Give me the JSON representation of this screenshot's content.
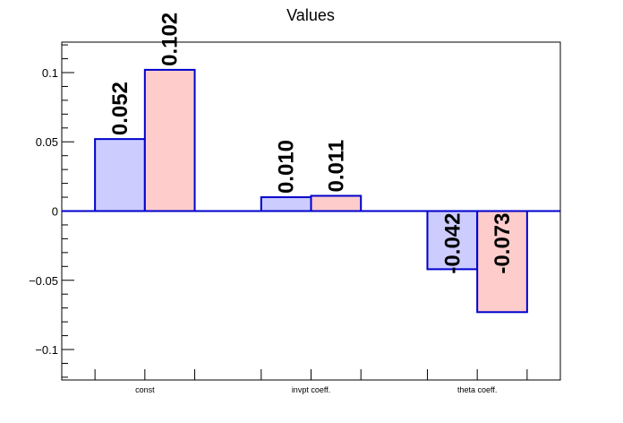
{
  "chart_data": {
    "type": "bar",
    "title": "Values",
    "xlabel": "",
    "ylabel": "",
    "categories": [
      "const",
      "invpt coeff.",
      "theta coeff."
    ],
    "ylim": [
      -0.122,
      0.122
    ],
    "yticks": [
      -0.1,
      -0.05,
      0,
      0.05,
      0.1
    ],
    "ytick_labels": [
      "−0.1",
      "−0.05",
      "0",
      "0.05",
      "0.1"
    ],
    "series": [
      {
        "values": [
          0.052,
          0.01,
          -0.042
        ],
        "labels": [
          "0.052",
          "0.010",
          "-0.042"
        ],
        "fill": "#ccccff",
        "stroke": "#0000cc"
      },
      {
        "values": [
          0.102,
          0.011,
          -0.073
        ],
        "labels": [
          "0.102",
          "0.011",
          "-0.073"
        ],
        "fill": "#ffcccc",
        "stroke": "#0000cc"
      }
    ],
    "grid": false,
    "zero_line_color": "#0000cc"
  }
}
